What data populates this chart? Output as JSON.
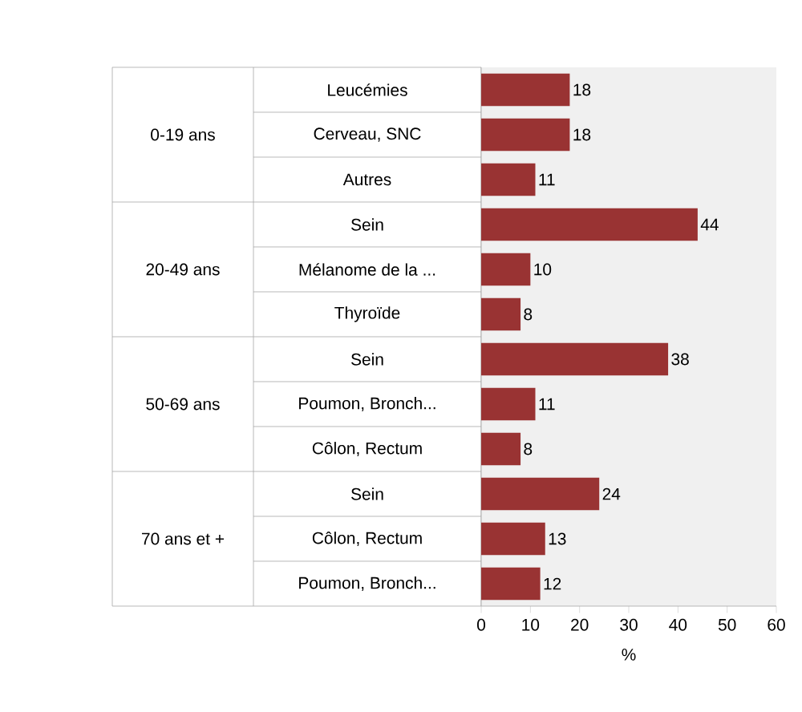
{
  "chart_data": {
    "type": "bar",
    "orientation": "horizontal",
    "xlabel": "%",
    "categories": [
      "Leucémies",
      "Cerveau, SNC",
      "Autres",
      "Sein",
      "Mélanome de la ...",
      "Thyroïde",
      "Sein",
      "Poumon, Bronch...",
      "Côlon, Rectum",
      "Sein",
      "Côlon, Rectum",
      "Poumon, Bronch..."
    ],
    "values": [
      18,
      18,
      11,
      44,
      10,
      8,
      38,
      11,
      8,
      24,
      13,
      12
    ],
    "color": "#993333",
    "xlim": [
      0,
      60
    ],
    "xticks": [
      0,
      10,
      20,
      30,
      40,
      50,
      60
    ],
    "annotations": [
      "0-19 ans",
      "20-49 ans",
      "50-69 ans",
      "70 ans et +"
    ],
    "data_labels": true,
    "grid": false
  }
}
